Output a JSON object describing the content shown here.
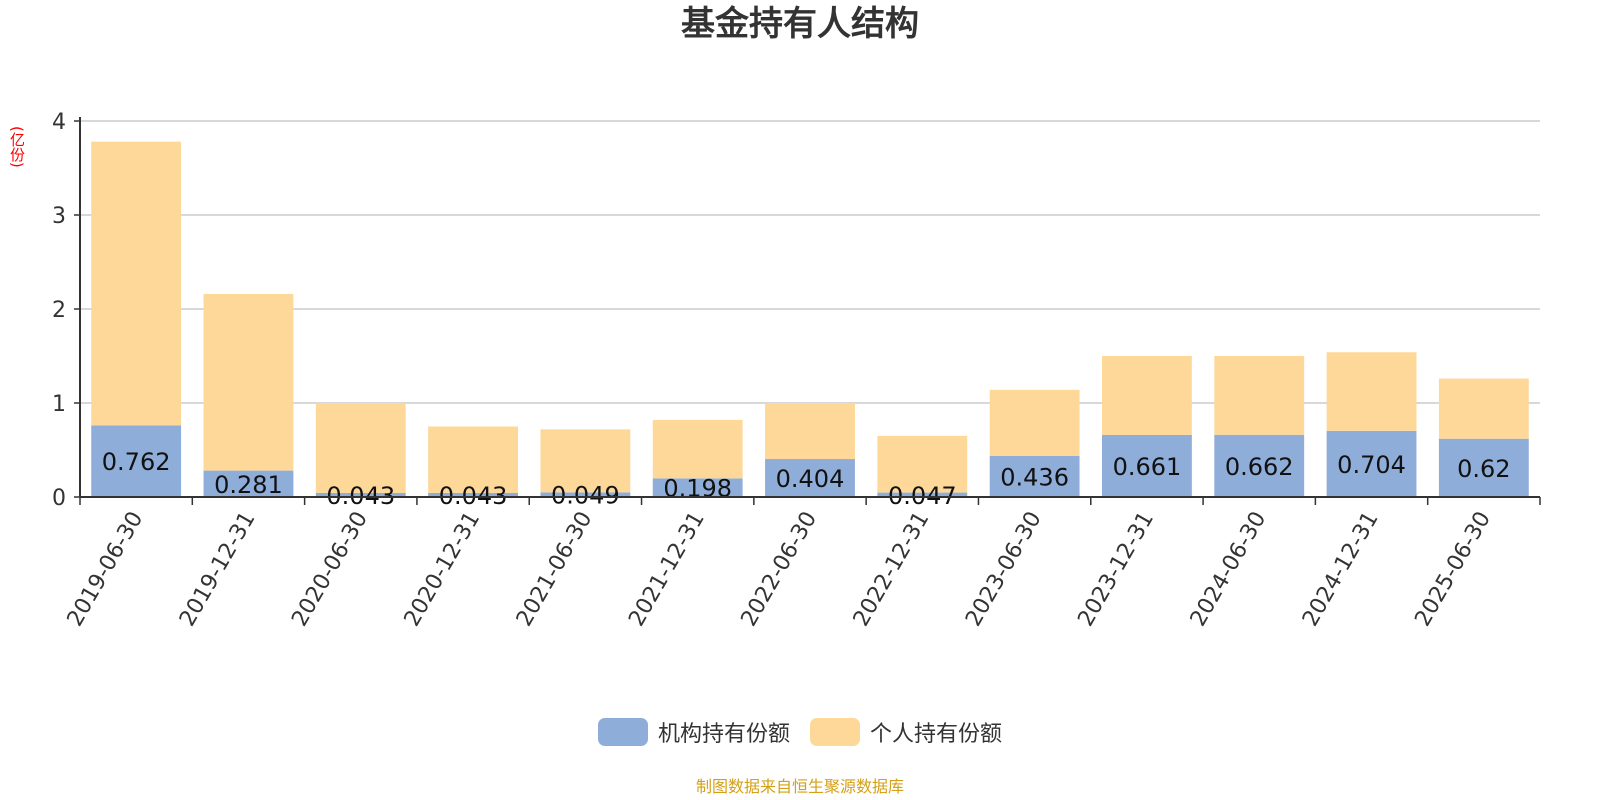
{
  "chart_data": {
    "type": "bar",
    "stacked": true,
    "title": "基金持有人结构",
    "ylabel": "(亿份)",
    "ylim": [
      0,
      4
    ],
    "yticks": [
      "0",
      "1",
      "2",
      "3",
      "4"
    ],
    "grid": true,
    "legend_position": "bottom",
    "categories": [
      "2019-06-30",
      "2019-12-31",
      "2020-06-30",
      "2020-12-31",
      "2021-06-30",
      "2021-12-31",
      "2022-06-30",
      "2022-12-31",
      "2023-06-30",
      "2023-12-31",
      "2024-06-30",
      "2024-12-31",
      "2025-06-30"
    ],
    "series": [
      {
        "name": "机构持有份额",
        "color": "#8fadd9",
        "values": [
          0.762,
          0.281,
          0.043,
          0.043,
          0.049,
          0.198,
          0.404,
          0.047,
          0.436,
          0.661,
          0.662,
          0.704,
          0.62
        ],
        "labels": [
          "0.762",
          "0.281",
          "0.043",
          "0.043",
          "0.049",
          "0.198",
          "0.404",
          "0.047",
          "0.436",
          "0.661",
          "0.662",
          "0.704",
          "0.62"
        ]
      },
      {
        "name": "个人持有份额",
        "color": "#fdd898",
        "values": [
          3.018,
          1.879,
          0.957,
          0.707,
          0.671,
          0.622,
          0.596,
          0.603,
          0.704,
          0.839,
          0.838,
          0.836,
          0.64
        ]
      }
    ]
  },
  "source": "制图数据来自恒生聚源数据库"
}
